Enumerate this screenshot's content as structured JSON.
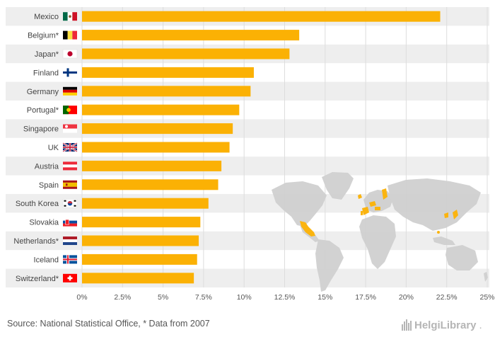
{
  "chart_data": {
    "type": "bar",
    "orientation": "horizontal",
    "categories": [
      "Mexico",
      "Belgium*",
      "Japan*",
      "Finland",
      "Germany",
      "Portugal*",
      "Singapore",
      "UK",
      "Austria",
      "Spain",
      "South Korea",
      "Slovakia",
      "Netherlands*",
      "Iceland",
      "Switzerland*"
    ],
    "values": [
      22.1,
      13.4,
      12.8,
      10.6,
      10.4,
      9.7,
      9.3,
      9.1,
      8.6,
      8.4,
      7.8,
      7.3,
      7.2,
      7.1,
      6.9
    ],
    "xlim": [
      0,
      25
    ],
    "x_ticks": [
      "0%",
      "2.5%",
      "5%",
      "7.5%",
      "10%",
      "12.5%",
      "15%",
      "17.5%",
      "20%",
      "22.5%",
      "25%"
    ],
    "bar_color": "#FBB104",
    "grid": true
  },
  "flags": [
    "mexico-flag",
    "belgium-flag",
    "japan-flag",
    "finland-flag",
    "germany-flag",
    "portugal-flag",
    "singapore-flag",
    "uk-flag",
    "austria-flag",
    "spain-flag",
    "south-korea-flag",
    "slovakia-flag",
    "netherlands-flag",
    "iceland-flag",
    "switzerland-flag"
  ],
  "footer": {
    "source": "Source: National Statistical Office, * Data from 2007",
    "brand_name": "HelgiLibrary",
    "brand_suffix": "."
  },
  "colors": {
    "stripe": "#EEEEEE",
    "map_land": "#D0D0D0",
    "map_highlight": "#FBB104"
  }
}
